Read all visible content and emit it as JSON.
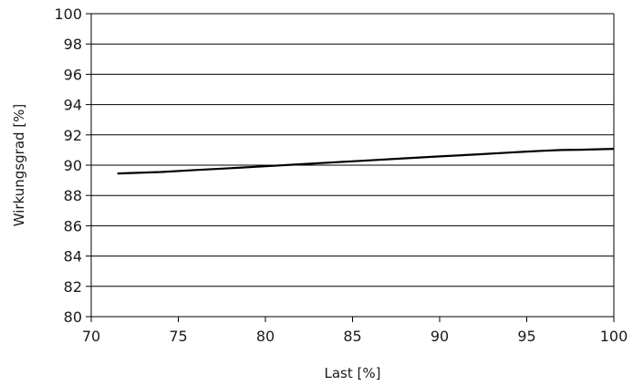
{
  "chart_data": {
    "type": "line",
    "xlabel": "Last [%]",
    "ylabel": "Wirkungsgrad [%]",
    "xlim": [
      70,
      100
    ],
    "ylim": [
      80,
      100
    ],
    "xticks": [
      70,
      75,
      80,
      85,
      90,
      95,
      100
    ],
    "yticks": [
      80,
      82,
      84,
      86,
      88,
      90,
      92,
      94,
      96,
      98,
      100
    ],
    "grid": "horizontal",
    "line_color": "#000000",
    "series": [
      {
        "x": [
          71.5,
          74,
          76,
          78,
          80,
          82,
          84,
          86,
          88,
          90,
          92,
          94,
          95,
          96,
          97,
          98,
          100
        ],
        "y": [
          89.45,
          89.55,
          89.68,
          89.8,
          89.93,
          90.06,
          90.19,
          90.32,
          90.45,
          90.58,
          90.7,
          90.83,
          90.9,
          90.95,
          91.0,
          91.02,
          91.08
        ]
      }
    ]
  }
}
